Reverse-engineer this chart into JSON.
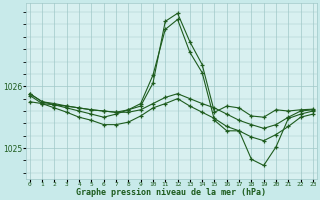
{
  "background_color": "#c8eaea",
  "plot_bg_color": "#d8f0f0",
  "line_color": "#1e5c1e",
  "grid_color": "#a0c8c8",
  "xlabel": "Graphe pression niveau de la mer (hPa)",
  "yticks": [
    1025,
    1026
  ],
  "ylim": [
    1024.5,
    1027.35
  ],
  "xlim": [
    -0.3,
    23.3
  ],
  "series": [
    [
      1025.88,
      1025.75,
      1025.72,
      1025.68,
      1025.65,
      1025.62,
      1025.6,
      1025.58,
      1025.62,
      1025.68,
      1026.05,
      1027.05,
      1027.18,
      1026.72,
      1026.35,
      1025.58,
      1025.68,
      1025.65,
      1025.52,
      1025.5,
      1025.62,
      1025.6,
      1025.62,
      1025.63
    ],
    [
      1025.75,
      1025.72,
      1025.7,
      1025.68,
      1025.65,
      1025.62,
      1025.6,
      1025.58,
      1025.58,
      1025.62,
      1025.72,
      1025.82,
      1025.88,
      1025.8,
      1025.72,
      1025.65,
      1025.55,
      1025.45,
      1025.38,
      1025.32,
      1025.38,
      1025.5,
      1025.6,
      1025.62
    ],
    [
      1025.88,
      1025.75,
      1025.7,
      1025.65,
      1025.6,
      1025.55,
      1025.5,
      1025.55,
      1025.62,
      1025.72,
      1026.18,
      1026.92,
      1027.08,
      1026.55,
      1026.22,
      1025.45,
      1025.28,
      1025.28,
      1024.82,
      1024.72,
      1025.02,
      1025.48,
      1025.55,
      1025.6
    ],
    [
      1025.85,
      1025.72,
      1025.65,
      1025.58,
      1025.5,
      1025.45,
      1025.38,
      1025.38,
      1025.42,
      1025.52,
      1025.65,
      1025.72,
      1025.8,
      1025.68,
      1025.58,
      1025.48,
      1025.35,
      1025.28,
      1025.18,
      1025.12,
      1025.22,
      1025.35,
      1025.5,
      1025.55
    ]
  ]
}
